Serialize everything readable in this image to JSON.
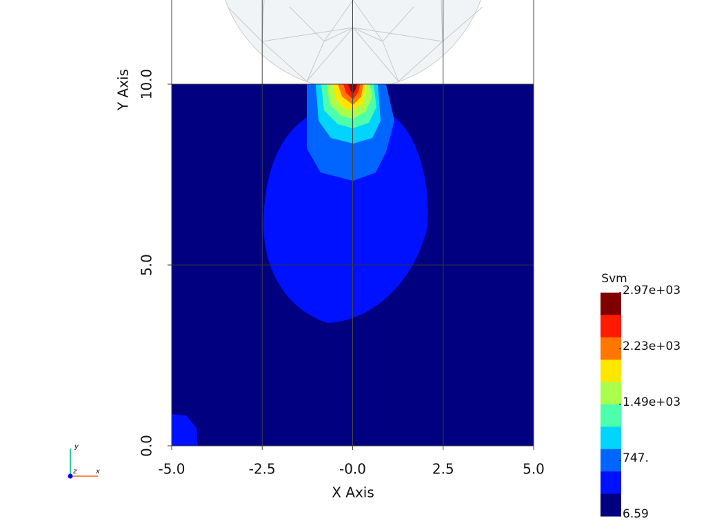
{
  "chart_data": {
    "type": "contour",
    "xlabel": "X Axis",
    "ylabel": "Y Axis",
    "xlim": [
      -5,
      5
    ],
    "ylim": [
      0,
      10
    ],
    "xticks": [
      {
        "value": -5,
        "label": "-5.0"
      },
      {
        "value": -2.5,
        "label": "-2.5"
      },
      {
        "value": 0,
        "label": "-0.0"
      },
      {
        "value": 2.5,
        "label": "2.5"
      },
      {
        "value": 5,
        "label": "5.0"
      }
    ],
    "yticks": [
      {
        "value": 0,
        "label": "0.0"
      },
      {
        "value": 5,
        "label": "5.0"
      },
      {
        "value": 10,
        "label": "10.0"
      }
    ],
    "grid": true,
    "colorbar": {
      "title": "Svm",
      "clim": [
        6.59,
        2970
      ],
      "ticks": [
        {
          "value": 2970,
          "label": "2.97e+03"
        },
        {
          "value": 2230,
          "label": "2.23e+03"
        },
        {
          "value": 1490,
          "label": "1.49e+03"
        },
        {
          "value": 747,
          "label": "747."
        },
        6.59
      ],
      "colors": [
        "#800000",
        "#ff1a00",
        "#ff7700",
        "#ffe600",
        "#aaff4d",
        "#4dffaa",
        "#00d4ff",
        "#0066ff",
        "#0011ff",
        "#000080"
      ]
    }
  }
}
